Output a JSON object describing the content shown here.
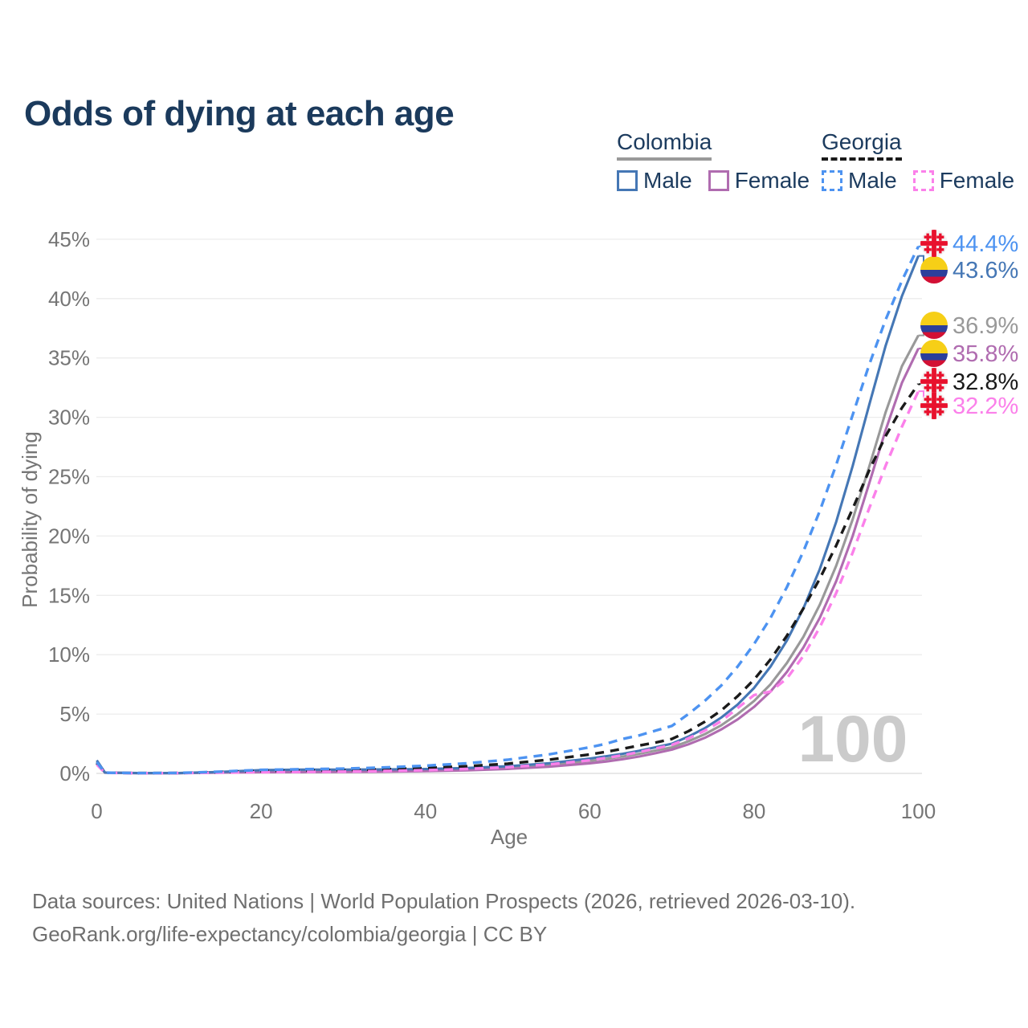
{
  "header": {
    "title": "Odds of dying at each age"
  },
  "legend": {
    "groups": [
      {
        "country": "Colombia",
        "line_style": "solid",
        "underline_color": "#999999",
        "items": [
          {
            "label": "Male",
            "color": "#4577b5"
          },
          {
            "label": "Female",
            "color": "#b06cb0"
          }
        ]
      },
      {
        "country": "Georgia",
        "line_style": "dashed",
        "underline_color": "#1a1a1a",
        "items": [
          {
            "label": "Male",
            "color": "#4d93f1"
          },
          {
            "label": "Female",
            "color": "#fb80ea"
          }
        ]
      }
    ]
  },
  "chart_data": {
    "type": "line",
    "title": "Odds of dying at each age",
    "xlabel": "Age",
    "ylabel": "Probability of dying",
    "xlim": [
      0,
      100
    ],
    "ylim": [
      0,
      45
    ],
    "grid": "horizontal",
    "legend_position": "top-right",
    "watermark": "100",
    "x_ticks": [
      {
        "v": 0,
        "label": "0"
      },
      {
        "v": 20,
        "label": "20"
      },
      {
        "v": 40,
        "label": "40"
      },
      {
        "v": 60,
        "label": "60"
      },
      {
        "v": 80,
        "label": "80"
      },
      {
        "v": 100,
        "label": "100"
      }
    ],
    "y_ticks": [
      {
        "v": 0,
        "label": "0%"
      },
      {
        "v": 5,
        "label": "5%"
      },
      {
        "v": 10,
        "label": "10%"
      },
      {
        "v": 15,
        "label": "15%"
      },
      {
        "v": 20,
        "label": "20%"
      },
      {
        "v": 25,
        "label": "25%"
      },
      {
        "v": 30,
        "label": "30%"
      },
      {
        "v": 35,
        "label": "35%"
      },
      {
        "v": 40,
        "label": "40%"
      },
      {
        "v": 45,
        "label": "45%"
      }
    ],
    "x": [
      0,
      1,
      5,
      10,
      15,
      20,
      25,
      30,
      35,
      40,
      45,
      50,
      55,
      60,
      62,
      64,
      66,
      68,
      70,
      72,
      74,
      76,
      78,
      80,
      82,
      84,
      86,
      88,
      90,
      92,
      94,
      96,
      98,
      100
    ],
    "series": [
      {
        "id": "colombia_average",
        "name": "Colombia",
        "country": "Colombia",
        "sex": "both",
        "color": "#999999",
        "dashed": false,
        "flag": "colombia",
        "end_label": "36.9%",
        "values": [
          1.0,
          0.065,
          0.025,
          0.025,
          0.1,
          0.19,
          0.22,
          0.22,
          0.24,
          0.28,
          0.36,
          0.49,
          0.7,
          1.05,
          1.22,
          1.42,
          1.65,
          1.93,
          2.2,
          2.7,
          3.3,
          4.05,
          5.0,
          6.1,
          7.5,
          9.3,
          11.5,
          14.2,
          17.5,
          21.4,
          25.8,
          30.4,
          34.3,
          36.9
        ]
      },
      {
        "id": "colombia_female",
        "name": "Colombia Female",
        "country": "Colombia",
        "sex": "female",
        "color": "#b06cb0",
        "dashed": false,
        "flag": "colombia",
        "end_label": "35.8%",
        "values": [
          0.9,
          0.06,
          0.02,
          0.02,
          0.07,
          0.1,
          0.11,
          0.12,
          0.15,
          0.19,
          0.26,
          0.38,
          0.56,
          0.85,
          1.0,
          1.2,
          1.42,
          1.7,
          2.0,
          2.45,
          3.0,
          3.7,
          4.55,
          5.6,
          6.9,
          8.55,
          10.6,
          13.1,
          16.2,
          20.0,
          24.4,
          28.9,
          32.9,
          35.8
        ]
      },
      {
        "id": "colombia_male",
        "name": "Colombia Male",
        "country": "Colombia",
        "sex": "male",
        "color": "#4577b5",
        "dashed": false,
        "flag": "colombia",
        "end_label": "43.6%",
        "values": [
          1.1,
          0.07,
          0.03,
          0.03,
          0.12,
          0.28,
          0.32,
          0.32,
          0.33,
          0.37,
          0.45,
          0.6,
          0.85,
          1.25,
          1.45,
          1.65,
          1.9,
          2.2,
          2.5,
          3.1,
          3.8,
          4.7,
          5.8,
          7.2,
          9.0,
          11.2,
          13.9,
          17.2,
          21.2,
          25.9,
          31.0,
          36.0,
          40.2,
          43.6
        ]
      },
      {
        "id": "georgia_average",
        "name": "Georgia",
        "country": "Georgia",
        "sex": "both",
        "color": "#1a1a1a",
        "dashed": true,
        "flag": "georgia",
        "end_label": "32.8%",
        "values": [
          0.85,
          0.055,
          0.025,
          0.035,
          0.1,
          0.2,
          0.24,
          0.28,
          0.35,
          0.45,
          0.6,
          0.82,
          1.15,
          1.6,
          1.82,
          2.07,
          2.35,
          2.6,
          2.9,
          3.55,
          4.35,
          5.3,
          6.5,
          7.9,
          9.6,
          11.6,
          13.9,
          16.4,
          19.2,
          22.3,
          25.5,
          28.4,
          30.8,
          32.8
        ]
      },
      {
        "id": "georgia_female",
        "name": "Georgia Female",
        "country": "Georgia",
        "sex": "female",
        "color": "#fb80ea",
        "dashed": true,
        "flag": "georgia",
        "end_label": "32.2%",
        "values": [
          0.75,
          0.05,
          0.02,
          0.03,
          0.06,
          0.1,
          0.12,
          0.15,
          0.2,
          0.27,
          0.37,
          0.52,
          0.75,
          1.1,
          1.3,
          1.52,
          1.8,
          2.1,
          2.4,
          2.95,
          3.6,
          4.4,
          5.5,
          6.6,
          6.9,
          8.0,
          9.9,
          12.3,
          15.2,
          18.6,
          22.3,
          25.9,
          29.2,
          32.2
        ]
      },
      {
        "id": "georgia_male",
        "name": "Georgia Male",
        "country": "Georgia",
        "sex": "male",
        "color": "#4d93f1",
        "dashed": true,
        "flag": "georgia",
        "end_label": "44.4%",
        "values": [
          0.95,
          0.06,
          0.03,
          0.04,
          0.15,
          0.3,
          0.35,
          0.4,
          0.5,
          0.65,
          0.85,
          1.15,
          1.6,
          2.2,
          2.5,
          2.9,
          3.2,
          3.6,
          4.0,
          5.0,
          6.1,
          7.4,
          9.0,
          10.9,
          13.1,
          15.7,
          18.7,
          22.1,
          26.0,
          30.2,
          34.4,
          38.2,
          41.5,
          44.4
        ]
      }
    ],
    "flag_colors": {
      "colombia": {
        "yellow": "#f6cf17",
        "blue": "#2b3f9b",
        "red": "#d21034"
      },
      "georgia": {
        "background": "#f3f3f3",
        "red": "#e8112d"
      }
    }
  },
  "footer": {
    "line1": "Data sources: United Nations | World Population Prospects (2026, retrieved 2026-03-10).",
    "line2": "GeoRank.org/life-expectancy/colombia/georgia | CC BY"
  }
}
